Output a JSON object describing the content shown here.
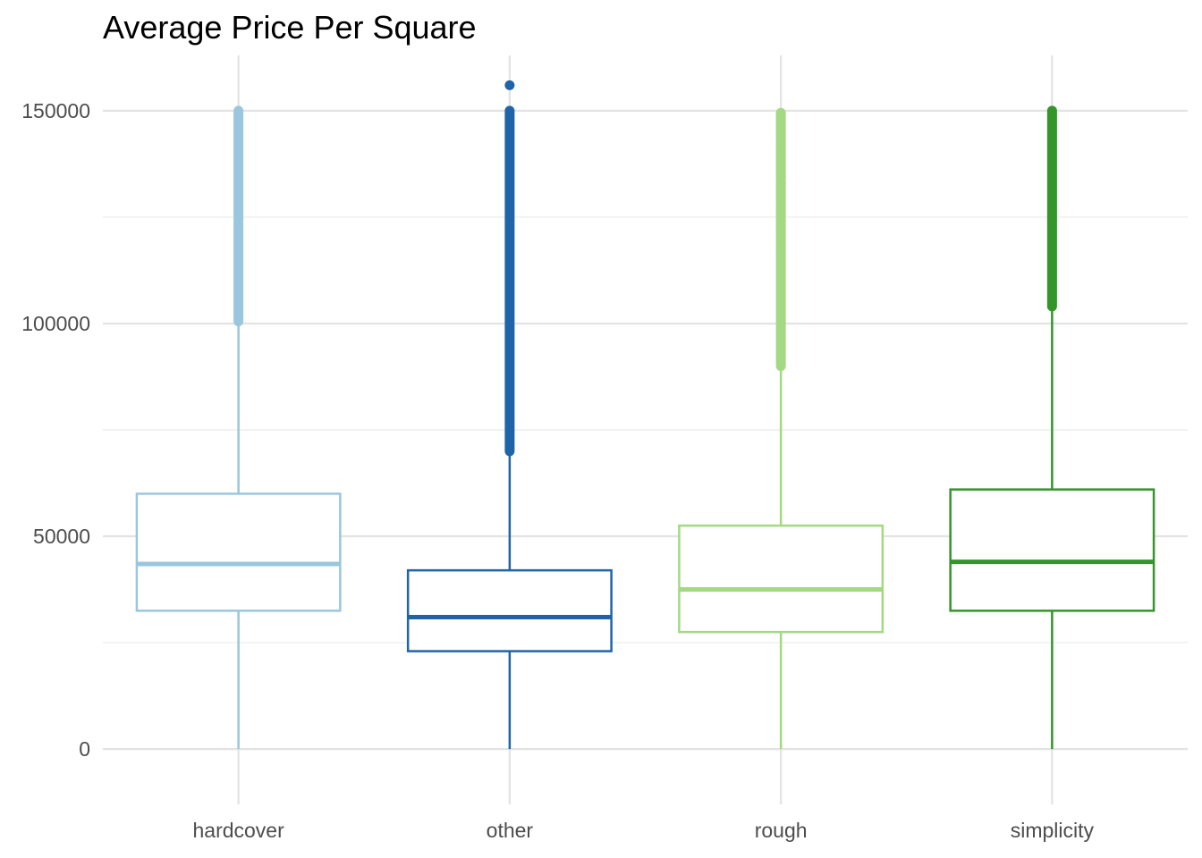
{
  "chart_data": {
    "type": "boxplot",
    "title": "Average Price Per Square",
    "xlabel": "",
    "ylabel": "",
    "ylim": [
      -13000,
      163000
    ],
    "y_ticks": [
      0,
      50000,
      100000,
      150000
    ],
    "y_tick_labels": [
      "0",
      "50000",
      "100000",
      "150000"
    ],
    "grid": true,
    "legend": "none",
    "categories": [
      "hardcover",
      "other",
      "rough",
      "simplicity"
    ],
    "boxes": [
      {
        "name": "hardcover",
        "color": "#9ac7dd",
        "min": 0,
        "q1": 32500,
        "median": 43500,
        "q3": 60000,
        "whisker_high": 100500,
        "outlier_range": [
          100500,
          150000
        ],
        "outliers": []
      },
      {
        "name": "other",
        "color": "#2064a8",
        "min": 0,
        "q1": 23000,
        "median": 31000,
        "q3": 42000,
        "whisker_high": 70000,
        "outlier_range": [
          70000,
          150000
        ],
        "outliers": [
          156000
        ]
      },
      {
        "name": "rough",
        "color": "#a3d982",
        "min": 0,
        "q1": 27500,
        "median": 37500,
        "q3": 52500,
        "whisker_high": 90000,
        "outlier_range": [
          90000,
          149500
        ],
        "outliers": [
          149000,
          147500,
          145000,
          142000,
          140000,
          138000,
          136000,
          134500,
          133000,
          131000,
          129000,
          127500,
          125500,
          124000,
          122500,
          121000,
          119500,
          118000
        ]
      },
      {
        "name": "simplicity",
        "color": "#33952a",
        "min": 0,
        "q1": 32500,
        "median": 44000,
        "q3": 61000,
        "whisker_high": 104000,
        "outlier_range": [
          104000,
          150000
        ],
        "outliers": []
      }
    ]
  }
}
